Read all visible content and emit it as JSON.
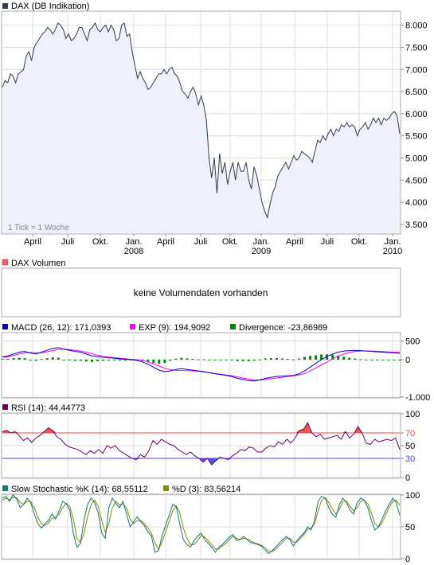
{
  "colors": {
    "price_line": "#2f3a4d",
    "price_fill": "#eef0fb",
    "panel_border": "#aaaaaa",
    "grid": "#dddddd",
    "macd": "#0000cc",
    "exp": "#ff00ff",
    "divergence": "#008800",
    "rsi": "#660066",
    "rsi_upper": "#ff4444",
    "rsi_lower": "#4444ff",
    "stoch_k": "#117777",
    "stoch_d": "#888800"
  },
  "panels": {
    "price": {
      "legend": "DAX (DB Indikation)",
      "tick_note": "1 Tick = 1 Woche",
      "ylabels": [
        "8.000",
        "7.500",
        "7.000",
        "6.500",
        "6.000",
        "5.500",
        "5.000",
        "4.500",
        "4.000",
        "3.500"
      ],
      "yvalues": [
        8000,
        7500,
        7000,
        6500,
        6000,
        5500,
        5000,
        4500,
        4000,
        3500
      ]
    },
    "volume": {
      "legend": "DAX Volumen",
      "message": "keine Volumendaten vorhanden"
    },
    "macd": {
      "legend_macd": "MACD (26, 12): 171,0393",
      "legend_exp": "EXP (9): 194,9092",
      "legend_div": "Divergence: -23,86989",
      "ylabels": [
        "500",
        "0",
        "-1.000"
      ],
      "yvalues": [
        500,
        0,
        -1000
      ]
    },
    "rsi": {
      "legend": "RSI (14): 44,44773",
      "ylabels": [
        "100",
        "70",
        "50",
        "30",
        "0"
      ],
      "yvalues": [
        100,
        70,
        50,
        30,
        0
      ],
      "upper": 70,
      "lower": 30
    },
    "stoch": {
      "legend_k": "Slow Stochastic %K (14): 68,55112",
      "legend_d": "%D (3): 83,56214",
      "ylabels": [
        "100",
        "50",
        "0"
      ],
      "yvalues": [
        100,
        50,
        0
      ]
    }
  },
  "xaxis": {
    "months": [
      "April",
      "Juli",
      "Okt.",
      "Jan.",
      "April",
      "Juli",
      "Okt.",
      "Jan.",
      "April",
      "Juli",
      "Okt.",
      "Jan."
    ],
    "years": [
      "2008",
      "2009",
      "2010"
    ]
  },
  "chart_data": [
    {
      "type": "area",
      "name": "price",
      "title": "DAX (DB Indikation)",
      "ylim": [
        3300,
        8300
      ],
      "grid": true,
      "values": [
        6600,
        6750,
        6700,
        6900,
        6850,
        6700,
        6900,
        6950,
        7000,
        7300,
        7400,
        7200,
        7500,
        7600,
        7700,
        7800,
        7850,
        7950,
        7900,
        7800,
        7900,
        8050,
        8000,
        7900,
        7700,
        7800,
        7650,
        7700,
        7800,
        7950,
        7950,
        7800,
        7650,
        7900,
        7950,
        8050,
        7900,
        7850,
        7950,
        8000,
        7850,
        8000,
        7900,
        7650,
        7700,
        8000,
        8050,
        7750,
        7800,
        7400,
        7100,
        6800,
        6950,
        6800,
        6700,
        6550,
        6600,
        6700,
        6800,
        6900,
        6900,
        7000,
        6900,
        7000,
        7050,
        6900,
        6850,
        6700,
        6500,
        6450,
        6350,
        6500,
        6600,
        6450,
        6200,
        6400,
        6200,
        5850,
        5000,
        4550,
        5000,
        4200,
        5100,
        4650,
        4900,
        4400,
        4700,
        4900,
        4500,
        4900,
        4700,
        4700,
        4900,
        4500,
        4300,
        4800,
        4600,
        4300,
        4000,
        3800,
        3650,
        3950,
        4200,
        4350,
        4600,
        4700,
        4800,
        4900,
        4750,
        4900,
        5050,
        4950,
        5000,
        5150,
        5100,
        5050,
        5000,
        4900,
        5150,
        5400,
        5350,
        5500,
        5400,
        5550,
        5650,
        5500,
        5650,
        5600,
        5750,
        5700,
        5800,
        5700,
        5750,
        5700,
        5500,
        5650,
        5700,
        5800,
        5650,
        5750,
        5900,
        5800,
        5900,
        5750,
        5900,
        5850,
        5900,
        6000,
        6050,
        5950,
        5550
      ]
    },
    {
      "type": "line",
      "name": "macd",
      "ylim": [
        -1000,
        700
      ],
      "series": [
        {
          "name": "MACD (26, 12)",
          "values": [
            80,
            100,
            150,
            200,
            220,
            180,
            150,
            200,
            250,
            300,
            320,
            280,
            250,
            220,
            200,
            150,
            100,
            80,
            60,
            50,
            40,
            20,
            10,
            0,
            -20,
            -60,
            -120,
            -200,
            -280,
            -320,
            -300,
            -260,
            -240,
            -260,
            -280,
            -300,
            -320,
            -350,
            -380,
            -400,
            -420,
            -450,
            -500,
            -530,
            -560,
            -570,
            -540,
            -500,
            -470,
            -450,
            -440,
            -430,
            -420,
            -380,
            -300,
            -200,
            -100,
            0,
            80,
            150,
            200,
            230,
            240,
            250,
            240,
            230,
            220,
            210,
            200,
            190,
            180,
            171
          ]
        },
        {
          "name": "EXP (9)",
          "values": [
            60,
            80,
            110,
            150,
            180,
            190,
            180,
            185,
            210,
            240,
            270,
            280,
            270,
            250,
            230,
            200,
            160,
            120,
            90,
            70,
            55,
            40,
            25,
            10,
            0,
            -20,
            -60,
            -110,
            -170,
            -230,
            -270,
            -285,
            -290,
            -295,
            -300,
            -310,
            -330,
            -350,
            -370,
            -390,
            -410,
            -430,
            -460,
            -490,
            -520,
            -540,
            -545,
            -530,
            -510,
            -490,
            -470,
            -450,
            -430,
            -410,
            -370,
            -300,
            -220,
            -140,
            -60,
            20,
            90,
            150,
            190,
            220,
            230,
            232,
            230,
            225,
            215,
            205,
            195,
            195
          ]
        }
      ]
    },
    {
      "type": "bar",
      "name": "divergence",
      "ylim": [
        -1000,
        700
      ],
      "values": [
        20,
        20,
        40,
        50,
        40,
        -10,
        -30,
        15,
        40,
        60,
        50,
        0,
        -20,
        -30,
        -30,
        -50,
        -60,
        -40,
        -30,
        -20,
        -15,
        -20,
        -15,
        -10,
        -20,
        -40,
        -60,
        -90,
        -110,
        -90,
        -30,
        25,
        50,
        35,
        20,
        10,
        10,
        0,
        -10,
        -10,
        -10,
        -20,
        -40,
        -40,
        -40,
        -30,
        5,
        30,
        40,
        40,
        30,
        20,
        10,
        30,
        70,
        100,
        120,
        140,
        140,
        130,
        110,
        80,
        50,
        30,
        10,
        -2,
        -10,
        -15,
        -15,
        -15,
        -15,
        -24
      ]
    },
    {
      "type": "line",
      "name": "rsi",
      "ylim": [
        0,
        100
      ],
      "upper": 70,
      "lower": 30,
      "series": [
        {
          "name": "RSI (14)",
          "values": [
            72,
            74,
            70,
            72,
            66,
            58,
            62,
            55,
            62,
            66,
            72,
            78,
            74,
            64,
            60,
            52,
            48,
            46,
            44,
            40,
            36,
            42,
            38,
            44,
            38,
            50,
            46,
            50,
            42,
            38,
            34,
            30,
            28,
            36,
            32,
            42,
            58,
            52,
            60,
            56,
            52,
            50,
            44,
            40,
            36,
            40,
            34,
            30,
            24,
            30,
            20,
            26,
            32,
            30,
            28,
            34,
            38,
            44,
            42,
            48,
            46,
            40,
            40,
            46,
            50,
            48,
            56,
            52,
            60,
            54,
            62,
            74,
            76,
            86,
            70,
            64,
            68,
            60,
            62,
            64,
            66,
            60,
            72,
            62,
            68,
            80,
            70,
            54,
            52,
            60,
            56,
            58,
            60,
            58,
            62,
            44
          ]
        }
      ]
    },
    {
      "type": "line",
      "name": "stochastic",
      "ylim": [
        0,
        100
      ],
      "series": [
        {
          "name": "Slow Stochastic %K (14)",
          "values": [
            95,
            98,
            90,
            100,
            94,
            80,
            85,
            95,
            88,
            70,
            55,
            48,
            55,
            60,
            70,
            62,
            75,
            90,
            86,
            76,
            40,
            18,
            24,
            60,
            85,
            95,
            88,
            72,
            40,
            32,
            80,
            95,
            86,
            80,
            90,
            70,
            50,
            58,
            66,
            58,
            52,
            42,
            36,
            10,
            12,
            36,
            52,
            68,
            85,
            82,
            54,
            30,
            22,
            18,
            28,
            35,
            40,
            30,
            24,
            18,
            10,
            18,
            22,
            28,
            34,
            38,
            28,
            30,
            35,
            30,
            25,
            24,
            22,
            20,
            14,
            8,
            12,
            18,
            24,
            30,
            35,
            30,
            20,
            28,
            35,
            40,
            50,
            45,
            60,
            90,
            98,
            95,
            80,
            70,
            65,
            85,
            95,
            88,
            76,
            70,
            88,
            95,
            92,
            80,
            60,
            45,
            50,
            62,
            75,
            85,
            95,
            88,
            68
          ]
        },
        {
          "name": "%D (3)",
          "values": [
            92,
            95,
            93,
            96,
            96,
            88,
            86,
            90,
            90,
            80,
            65,
            55,
            52,
            56,
            63,
            65,
            70,
            80,
            87,
            82,
            62,
            32,
            25,
            40,
            65,
            85,
            92,
            82,
            60,
            42,
            55,
            80,
            90,
            84,
            86,
            80,
            62,
            55,
            60,
            60,
            55,
            48,
            40,
            25,
            15,
            26,
            42,
            58,
            75,
            83,
            72,
            48,
            32,
            22,
            22,
            28,
            36,
            34,
            28,
            22,
            15,
            15,
            20,
            24,
            30,
            35,
            32,
            30,
            32,
            31,
            28,
            25,
            23,
            21,
            17,
            12,
            11,
            15,
            20,
            26,
            32,
            32,
            26,
            26,
            32,
            38,
            46,
            48,
            55,
            75,
            92,
            96,
            88,
            78,
            70,
            78,
            90,
            90,
            82,
            75,
            80,
            90,
            92,
            86,
            72,
            55,
            50,
            56,
            68,
            80,
            90,
            92,
            84
          ]
        }
      ]
    }
  ]
}
